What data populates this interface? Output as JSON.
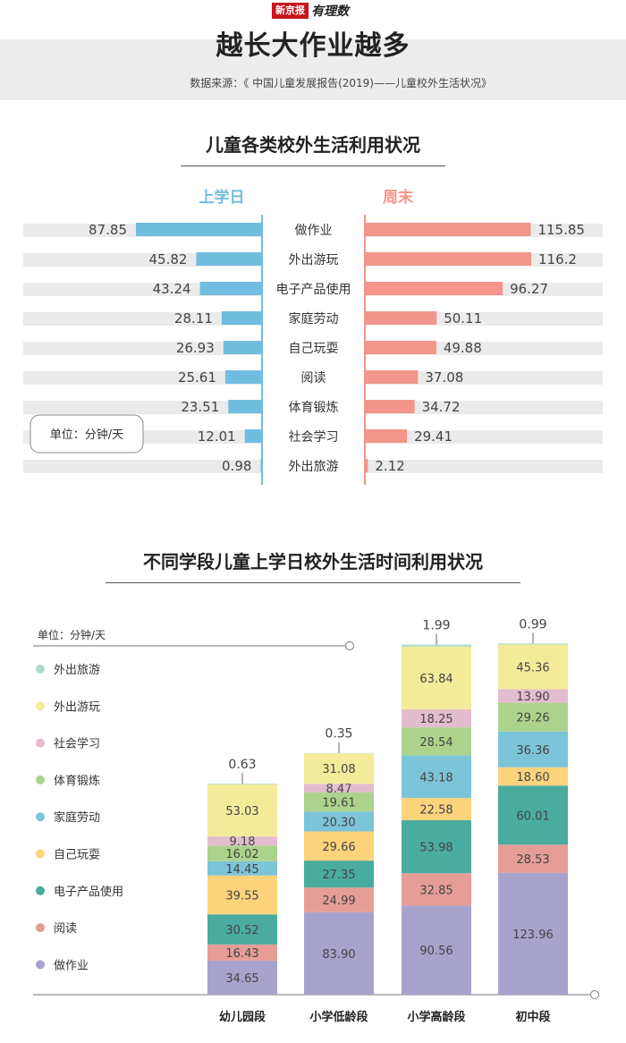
{
  "header": {
    "logo_box": "新京报",
    "logo_script": "有理数",
    "title": "越长大作业越多",
    "source": "数据来源：《 中国儿童发展报告(2019)——儿童校外生活状况》"
  },
  "colors": {
    "left_bar": "#71bde0",
    "right_bar": "#f3958a",
    "track": "#ebebeb",
    "divider": "#71bde0",
    "divider_right": "#f3958a"
  },
  "chart_data": [
    {
      "type": "bar",
      "title": "儿童各类校外生活利用状况",
      "unit_note": "单位：分钟/天",
      "categories": [
        "做作业",
        "外出游玩",
        "电子产品使用",
        "家庭劳动",
        "自己玩耍",
        "阅读",
        "体育锻炼",
        "社会学习",
        "外出旅游"
      ],
      "series": [
        {
          "name": "上学日",
          "values": [
            87.85,
            45.82,
            43.24,
            28.11,
            26.93,
            25.61,
            23.51,
            12.01,
            0.98
          ]
        },
        {
          "name": "周末",
          "values": [
            115.85,
            116.2,
            96.27,
            50.11,
            49.88,
            37.08,
            34.72,
            29.41,
            2.12
          ]
        }
      ],
      "value_labels": {
        "left": [
          "87.85",
          "45.82",
          "43.24",
          "28.11",
          "26.93",
          "25.61",
          "23.51",
          "12.01",
          "0.98"
        ],
        "right": [
          "115.85",
          "116.2",
          "96.27",
          "50.11",
          "49.88",
          "37.08",
          "34.72",
          "29.41",
          "2.12"
        ]
      },
      "xlim": [
        0,
        120
      ]
    },
    {
      "type": "bar",
      "stacked": true,
      "title": "不同学段儿童上学日校外生活时间利用状况",
      "unit_note": "单位：分钟/天",
      "categories": [
        "幼儿园段",
        "小学低龄段",
        "小学高龄段",
        "初中段"
      ],
      "series": [
        {
          "name": "做作业",
          "color": "#a8a3cd",
          "values": [
            34.65,
            83.9,
            90.56,
            123.96
          ],
          "labels": [
            "34.65",
            "83.90",
            "90.56",
            "123.96"
          ]
        },
        {
          "name": "阅读",
          "color": "#e59d96",
          "values": [
            16.43,
            24.99,
            32.85,
            28.53
          ],
          "labels": [
            "16.43",
            "24.99",
            "32.85",
            "28.53"
          ]
        },
        {
          "name": "电子产品使用",
          "color": "#4aab9f",
          "values": [
            30.52,
            27.35,
            53.98,
            60.01
          ],
          "labels": [
            "30.52",
            "27.35",
            "53.98",
            "60.01"
          ]
        },
        {
          "name": "自己玩耍",
          "color": "#fdd37c",
          "values": [
            39.55,
            29.66,
            22.58,
            18.6
          ],
          "labels": [
            "39.55",
            "29.66",
            "22.58",
            "18.60"
          ]
        },
        {
          "name": "家庭劳动",
          "color": "#7cc4d8",
          "values": [
            14.45,
            20.3,
            43.18,
            36.36
          ],
          "labels": [
            "14.45",
            "20.30",
            "43.18",
            "36.36"
          ]
        },
        {
          "name": "体育锻炼",
          "color": "#acd38c",
          "values": [
            16.02,
            19.61,
            28.54,
            29.26
          ],
          "labels": [
            "16.02",
            "19.61",
            "28.54",
            "29.26"
          ]
        },
        {
          "name": "社会学习",
          "color": "#e4bcd0",
          "values": [
            9.18,
            8.47,
            18.25,
            13.9
          ],
          "labels": [
            "9.18",
            "8.47",
            "18.25",
            "13.90"
          ]
        },
        {
          "name": "外出游玩",
          "color": "#f3eb9a",
          "values": [
            53.03,
            31.08,
            63.84,
            45.36
          ],
          "labels": [
            "53.03",
            "31.08",
            "63.84",
            "45.36"
          ]
        },
        {
          "name": "外出旅游",
          "color": "#a9dcc9",
          "values": [
            0.63,
            0.35,
            1.99,
            0.99
          ],
          "labels": [
            "0.63",
            "0.35",
            "1.99",
            "0.99"
          ]
        }
      ],
      "legend_order": [
        "外出旅游",
        "外出游玩",
        "社会学习",
        "体育锻炼",
        "家庭劳动",
        "自己玩耍",
        "电子产品使用",
        "阅读",
        "做作业"
      ]
    }
  ]
}
